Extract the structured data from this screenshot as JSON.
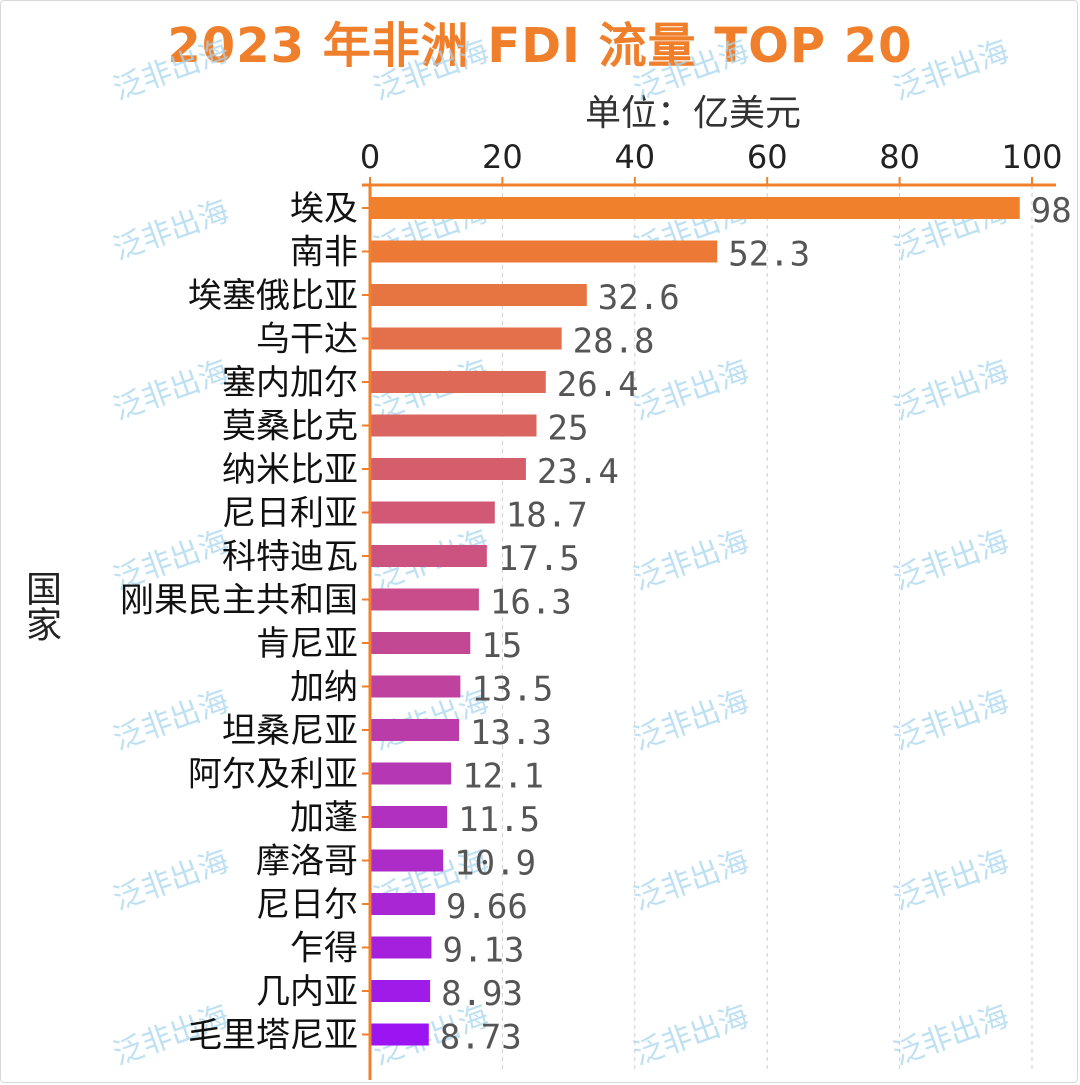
{
  "chart_data": {
    "type": "bar",
    "orientation": "horizontal",
    "title": "2023 年非洲 FDI 流量 TOP 20",
    "unit": "单位：亿美元",
    "xlabel": "",
    "ylabel": "国家",
    "xlim": [
      0,
      100
    ],
    "x_ticks": [
      "0",
      "20",
      "40",
      "60",
      "80",
      "100"
    ],
    "grid": "vertical-dashed",
    "categories": [
      "埃及",
      "南非",
      "埃塞俄比亚",
      "乌干达",
      "塞内加尔",
      "莫桑比克",
      "纳米比亚",
      "尼日利亚",
      "科特迪瓦",
      "刚果民主共和国",
      "肯尼亚",
      "加纳",
      "坦桑尼亚",
      "阿尔及利亚",
      "加蓬",
      "摩洛哥",
      "尼日尔",
      "乍得",
      "几内亚",
      "毛里塔尼亚"
    ],
    "values": [
      98,
      52.3,
      32.6,
      28.8,
      26.4,
      25,
      23.4,
      18.7,
      17.5,
      16.3,
      15,
      13.5,
      13.3,
      12.1,
      11.5,
      10.9,
      9.66,
      9.13,
      8.93,
      8.73
    ],
    "value_labels": [
      "98",
      "52.3",
      "32.6",
      "28.8",
      "26.4",
      "25",
      "23.4",
      "18.7",
      "17.5",
      "16.3",
      "15",
      "13.5",
      "13.3",
      "12.1",
      "11.5",
      "10.9",
      "9.66",
      "9.13",
      "8.93",
      "8.73"
    ],
    "color_gradient": [
      "#f0802c",
      "#9b15f2"
    ],
    "axis_color": "#f0802c"
  },
  "watermark": "泛非出海"
}
